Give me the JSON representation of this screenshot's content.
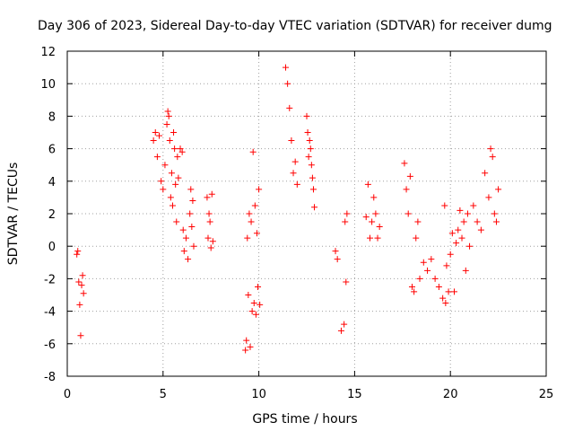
{
  "chart_data": {
    "type": "scatter",
    "title": "Day 306 of 2023, Sidereal Day-to-day VTEC variation (SDTVAR) for receiver dumg",
    "xlabel": "GPS time / hours",
    "ylabel": "SDTVAR / TECUs",
    "xlim": [
      0,
      25
    ],
    "ylim": [
      -8,
      12
    ],
    "xticks": [
      0,
      5,
      10,
      15,
      20,
      25
    ],
    "yticks": [
      -8,
      -6,
      -4,
      -2,
      0,
      2,
      4,
      6,
      8,
      10,
      12
    ],
    "xtick_labels": [
      "0",
      "5",
      "10",
      "15",
      "20",
      "25"
    ],
    "ytick_labels": [
      "-8",
      "-6",
      "-4",
      "-2",
      "0",
      "2",
      "4",
      "6",
      "8",
      "10",
      "12"
    ],
    "grid": true,
    "marker": "+",
    "color": "#ff0000",
    "series": [
      {
        "name": "SDTVAR",
        "x": [
          0.5,
          0.55,
          0.6,
          0.65,
          0.7,
          0.75,
          0.8,
          0.85,
          4.5,
          4.6,
          4.7,
          4.8,
          4.9,
          5.0,
          5.1,
          5.2,
          5.25,
          5.3,
          5.35,
          5.4,
          5.45,
          5.5,
          5.55,
          5.6,
          5.65,
          5.7,
          5.75,
          5.8,
          5.9,
          6.0,
          6.05,
          6.1,
          6.2,
          6.3,
          6.4,
          6.45,
          6.5,
          6.55,
          6.6,
          7.3,
          7.35,
          7.4,
          7.45,
          7.5,
          7.55,
          7.6,
          9.3,
          9.35,
          9.4,
          9.45,
          9.5,
          9.55,
          9.6,
          9.65,
          9.7,
          9.75,
          9.8,
          9.85,
          9.9,
          9.95,
          10.0,
          10.05,
          11.4,
          11.5,
          11.6,
          11.7,
          11.8,
          11.9,
          12.0,
          12.5,
          12.55,
          12.6,
          12.65,
          12.7,
          12.75,
          12.8,
          12.85,
          12.9,
          14.0,
          14.1,
          14.3,
          14.45,
          14.5,
          14.55,
          14.6,
          15.6,
          15.7,
          15.8,
          15.9,
          16.0,
          16.1,
          16.2,
          16.3,
          17.6,
          17.7,
          17.8,
          17.9,
          18.0,
          18.1,
          18.2,
          18.3,
          18.4,
          18.6,
          18.8,
          19.0,
          19.2,
          19.4,
          19.6,
          19.7,
          19.75,
          19.8,
          19.9,
          20.0,
          20.1,
          20.2,
          20.3,
          20.4,
          20.5,
          20.6,
          20.7,
          20.8,
          20.9,
          21.0,
          21.2,
          21.4,
          21.6,
          21.8,
          22.0,
          22.1,
          22.2,
          22.3,
          22.4,
          22.5
        ],
        "y": [
          -0.5,
          -0.3,
          -2.2,
          -3.6,
          -5.5,
          -2.4,
          -1.8,
          -2.9,
          6.5,
          7.0,
          5.5,
          6.8,
          4.0,
          3.5,
          5.0,
          7.5,
          8.3,
          8.0,
          6.5,
          3.0,
          4.5,
          2.5,
          7.0,
          6.0,
          3.8,
          1.5,
          5.5,
          4.2,
          6.0,
          5.8,
          1.0,
          -0.3,
          0.5,
          -0.8,
          2.0,
          3.5,
          1.2,
          2.8,
          0.0,
          3.0,
          0.5,
          2.0,
          1.5,
          -0.1,
          3.2,
          0.3,
          -6.4,
          -5.8,
          0.5,
          -3.0,
          2.0,
          -6.2,
          1.5,
          -4.0,
          5.8,
          -3.5,
          2.5,
          -4.2,
          0.8,
          -2.5,
          3.5,
          -3.6,
          11.0,
          10.0,
          8.5,
          6.5,
          4.5,
          5.2,
          3.8,
          8.0,
          7.0,
          5.5,
          6.5,
          6.0,
          5.0,
          4.2,
          3.5,
          2.4,
          -0.3,
          -0.8,
          -5.2,
          -4.8,
          1.5,
          -2.2,
          2.0,
          1.8,
          3.8,
          0.5,
          1.5,
          3.0,
          2.0,
          0.5,
          1.2,
          5.1,
          3.5,
          2.0,
          4.3,
          -2.5,
          -2.8,
          0.5,
          1.5,
          -2.0,
          -1.0,
          -1.5,
          -0.8,
          -2.0,
          -2.5,
          -3.2,
          2.5,
          -3.5,
          -1.2,
          -2.8,
          -0.5,
          0.8,
          -2.8,
          0.2,
          1.0,
          2.2,
          0.5,
          1.5,
          -1.5,
          2.0,
          0.0,
          2.5,
          1.5,
          1.0,
          4.5,
          3.0,
          6.0,
          5.5,
          2.0,
          1.5,
          3.5
        ]
      }
    ]
  }
}
